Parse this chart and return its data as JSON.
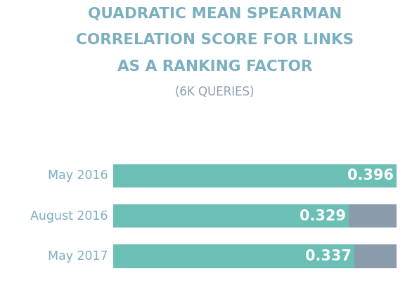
{
  "title_line1": "QUADRATIC MEAN SPEARMAN",
  "title_line2": "CORRELATION SCORE FOR LINKS",
  "title_line3": "AS A RANKING FACTOR",
  "subtitle": "(6K QUERIES)",
  "categories": [
    "May 2016",
    "August 2016",
    "May 2017"
  ],
  "values": [
    0.396,
    0.329,
    0.337
  ],
  "max_value": 0.396,
  "bar_color": "#6BBFB5",
  "bar_gray": "#8A9CAB",
  "label_color": "#FFFFFF",
  "title_color": "#7AAFBF",
  "subtitle_color": "#8A9CAB",
  "category_color": "#7AAFBF",
  "background_color": "#FFFFFF",
  "bar_height": 0.58,
  "title_fontsize": 15.5,
  "subtitle_fontsize": 12,
  "category_fontsize": 12.5,
  "value_fontsize": 15
}
